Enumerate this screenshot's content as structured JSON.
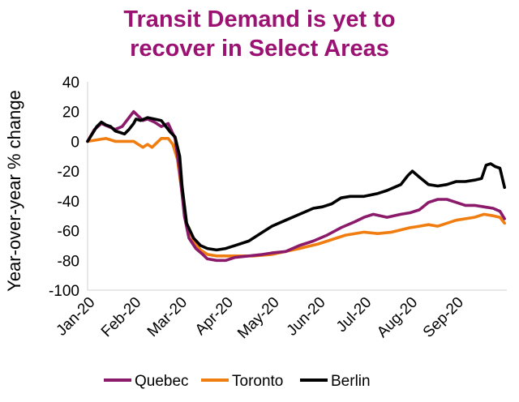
{
  "chart_data": {
    "type": "line",
    "title_lines": [
      "Transit Demand is yet to",
      "recover in Select Areas"
    ],
    "xlabel": "",
    "ylabel": "Year-over-year % change",
    "ylim": [
      -100,
      40
    ],
    "yticks": [
      40,
      20,
      0,
      -20,
      -40,
      -60,
      -80,
      -100
    ],
    "xlim": [
      0,
      9.1
    ],
    "xticks": [
      {
        "label": "Jan-20",
        "x": 0
      },
      {
        "label": "Feb-20",
        "x": 1
      },
      {
        "label": "Mar-20",
        "x": 2
      },
      {
        "label": "Apr-20",
        "x": 3
      },
      {
        "label": "May-20",
        "x": 4
      },
      {
        "label": "Jun-20",
        "x": 5
      },
      {
        "label": "Jul-20",
        "x": 6
      },
      {
        "label": "Aug-20",
        "x": 7
      },
      {
        "label": "Sep-20",
        "x": 8
      }
    ],
    "x_unit": "months since Jan 1, 2020",
    "grid": false,
    "legend_position": "bottom",
    "series": [
      {
        "name": "Quebec",
        "color": "#8b1a6b",
        "points": [
          [
            0,
            0
          ],
          [
            0.15,
            8
          ],
          [
            0.3,
            12
          ],
          [
            0.45,
            10
          ],
          [
            0.6,
            8
          ],
          [
            0.75,
            10
          ],
          [
            0.9,
            16
          ],
          [
            1.0,
            20
          ],
          [
            1.1,
            17
          ],
          [
            1.2,
            14
          ],
          [
            1.3,
            15
          ],
          [
            1.45,
            13
          ],
          [
            1.6,
            10
          ],
          [
            1.75,
            12
          ],
          [
            1.9,
            2
          ],
          [
            2.0,
            -20
          ],
          [
            2.1,
            -50
          ],
          [
            2.2,
            -65
          ],
          [
            2.35,
            -72
          ],
          [
            2.5,
            -76
          ],
          [
            2.6,
            -79
          ],
          [
            2.8,
            -80
          ],
          [
            3.0,
            -80
          ],
          [
            3.2,
            -78
          ],
          [
            3.5,
            -77
          ],
          [
            3.8,
            -76
          ],
          [
            4.0,
            -75
          ],
          [
            4.3,
            -74
          ],
          [
            4.6,
            -70
          ],
          [
            4.9,
            -67
          ],
          [
            5.2,
            -63
          ],
          [
            5.5,
            -58
          ],
          [
            5.8,
            -54
          ],
          [
            6.0,
            -51
          ],
          [
            6.2,
            -49
          ],
          [
            6.5,
            -51
          ],
          [
            6.8,
            -49
          ],
          [
            7.0,
            -48
          ],
          [
            7.2,
            -46
          ],
          [
            7.4,
            -41
          ],
          [
            7.6,
            -39
          ],
          [
            7.8,
            -39
          ],
          [
            8.0,
            -41
          ],
          [
            8.2,
            -43
          ],
          [
            8.4,
            -43
          ],
          [
            8.6,
            -44
          ],
          [
            8.8,
            -45
          ],
          [
            8.95,
            -47
          ],
          [
            9.05,
            -52
          ]
        ]
      },
      {
        "name": "Toronto",
        "color": "#f07d0f",
        "points": [
          [
            0,
            0
          ],
          [
            0.2,
            1
          ],
          [
            0.4,
            2
          ],
          [
            0.6,
            0
          ],
          [
            0.8,
            0
          ],
          [
            1.0,
            0
          ],
          [
            1.1,
            -2
          ],
          [
            1.2,
            -4
          ],
          [
            1.3,
            -2
          ],
          [
            1.4,
            -4
          ],
          [
            1.5,
            -1
          ],
          [
            1.6,
            2
          ],
          [
            1.75,
            2
          ],
          [
            1.85,
            -2
          ],
          [
            1.95,
            -12
          ],
          [
            2.05,
            -35
          ],
          [
            2.15,
            -55
          ],
          [
            2.3,
            -67
          ],
          [
            2.45,
            -73
          ],
          [
            2.6,
            -76
          ],
          [
            2.8,
            -77
          ],
          [
            3.0,
            -77
          ],
          [
            3.3,
            -77
          ],
          [
            3.6,
            -77
          ],
          [
            4.0,
            -76
          ],
          [
            4.3,
            -74
          ],
          [
            4.6,
            -72
          ],
          [
            5.0,
            -69
          ],
          [
            5.3,
            -66
          ],
          [
            5.6,
            -63
          ],
          [
            6.0,
            -61
          ],
          [
            6.3,
            -62
          ],
          [
            6.6,
            -61
          ],
          [
            7.0,
            -58
          ],
          [
            7.2,
            -57
          ],
          [
            7.4,
            -56
          ],
          [
            7.6,
            -57
          ],
          [
            7.8,
            -55
          ],
          [
            8.0,
            -53
          ],
          [
            8.2,
            -52
          ],
          [
            8.4,
            -51
          ],
          [
            8.6,
            -49
          ],
          [
            8.8,
            -50
          ],
          [
            8.95,
            -51
          ],
          [
            9.05,
            -55
          ]
        ]
      },
      {
        "name": "Berlin",
        "color": "#000000",
        "points": [
          [
            0,
            0
          ],
          [
            0.1,
            5
          ],
          [
            0.2,
            10
          ],
          [
            0.3,
            13
          ],
          [
            0.4,
            11
          ],
          [
            0.5,
            10
          ],
          [
            0.6,
            7
          ],
          [
            0.7,
            6
          ],
          [
            0.8,
            5
          ],
          [
            0.9,
            8
          ],
          [
            1.0,
            12
          ],
          [
            1.05,
            15
          ],
          [
            1.15,
            14
          ],
          [
            1.3,
            16
          ],
          [
            1.45,
            15
          ],
          [
            1.6,
            14
          ],
          [
            1.7,
            10
          ],
          [
            1.8,
            6
          ],
          [
            1.9,
            3
          ],
          [
            2.0,
            -10
          ],
          [
            2.05,
            -30
          ],
          [
            2.15,
            -55
          ],
          [
            2.3,
            -65
          ],
          [
            2.45,
            -70
          ],
          [
            2.6,
            -72
          ],
          [
            2.8,
            -73
          ],
          [
            3.0,
            -72
          ],
          [
            3.2,
            -70
          ],
          [
            3.5,
            -67
          ],
          [
            3.8,
            -61
          ],
          [
            4.0,
            -57
          ],
          [
            4.3,
            -53
          ],
          [
            4.6,
            -49
          ],
          [
            4.9,
            -45
          ],
          [
            5.1,
            -44
          ],
          [
            5.3,
            -42
          ],
          [
            5.5,
            -38
          ],
          [
            5.7,
            -37
          ],
          [
            6.0,
            -37
          ],
          [
            6.3,
            -35
          ],
          [
            6.5,
            -33
          ],
          [
            6.8,
            -29
          ],
          [
            6.95,
            -23
          ],
          [
            7.05,
            -20
          ],
          [
            7.2,
            -24
          ],
          [
            7.4,
            -29
          ],
          [
            7.6,
            -30
          ],
          [
            7.8,
            -29
          ],
          [
            8.0,
            -27
          ],
          [
            8.2,
            -27
          ],
          [
            8.4,
            -26
          ],
          [
            8.55,
            -25
          ],
          [
            8.65,
            -16
          ],
          [
            8.75,
            -15
          ],
          [
            8.85,
            -17
          ],
          [
            8.95,
            -18
          ],
          [
            9.05,
            -31
          ]
        ]
      }
    ]
  }
}
